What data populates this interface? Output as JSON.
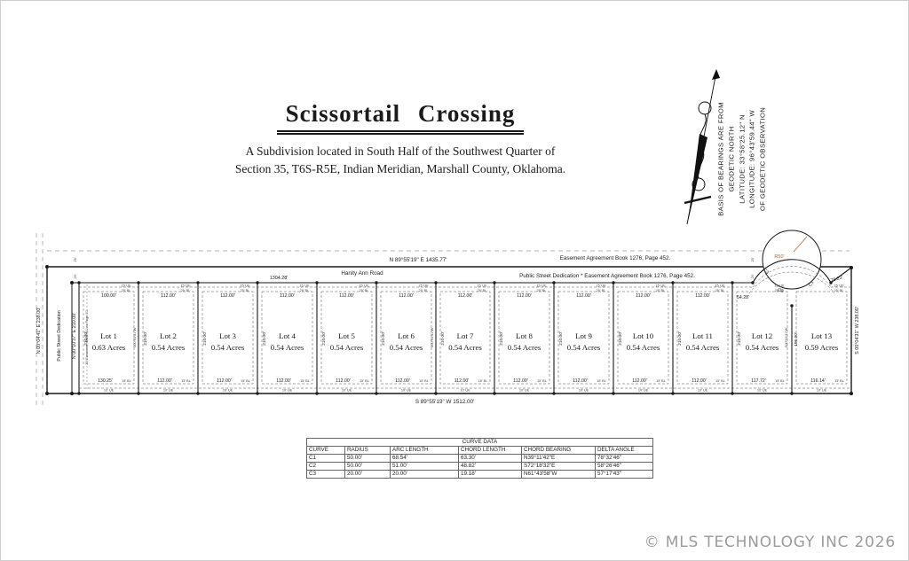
{
  "title": {
    "main": "Scissortail  Crossing",
    "subtitle1": "A Subdivision located in South Half of the Southwest Quarter of",
    "subtitle2": "Section 35, T6S-R5E, Indian Meridian, Marshall County, Oklahoma."
  },
  "north_arrow": {
    "l1": "BASIS OF BEARINGS ARE FROM",
    "l2": "GEODETIC NORTH",
    "l3": "LATITUDE: 33°58'25.12\" N",
    "l4": "LONGITUDE: 96°43'59.44\" W",
    "l5": "OF GEODETIC OBSERVATION"
  },
  "plat": {
    "north_bearing": "N 89°55'19\" E   1435.77'",
    "easement_note_top": "Easement Agreement Book 1276, Page 452.",
    "road_name": "Hanity Ann Road",
    "road_length": "1304.28'",
    "dedication_note": "Public Street Dedication   * Easement Agreement Book 1276, Page 452.",
    "south_bearing": "S 89°55'19\" W   1512.00'",
    "west_outer_bearing": "N 00°04'41\" E   238.00'",
    "west_dedication": "Public Street Dedication",
    "west_inner_bearing": "N 00°10'37\" E   210.00'",
    "west_easement": "30' Easement, Book 911 as Page 70",
    "east_bearing": "S 00°04'31\" W   238.00'",
    "mid_bearing": "S00°04'31\"W",
    "mid_length": "196.00'",
    "radius_label": "R50'",
    "accent_color": "#b4622f",
    "curve_labels": {
      "c1": "C1",
      "c2": "C2",
      "c3": "C3"
    },
    "offsets": {
      "row_offset": "25'",
      "top_ue": "15' UE",
      "top_bl": "25' BL",
      "bottom_bl": "15' BL",
      "bottom_ue": "10' UE"
    },
    "lots": [
      {
        "name": "Lot 1",
        "acres": "0.63 Acres",
        "top": "100.00'",
        "bottom": "130.25'",
        "side": "210.00'"
      },
      {
        "name": "Lot 2",
        "acres": "0.54 Acres",
        "top": "112.00'",
        "bottom": "112.00'",
        "side": "210.00'"
      },
      {
        "name": "Lot 3",
        "acres": "0.54 Acres",
        "top": "112.00'",
        "bottom": "112.00'",
        "side": "210.00'"
      },
      {
        "name": "Lot 4",
        "acres": "0.54 Acres",
        "top": "112.00'",
        "bottom": "112.00'",
        "side": "210.00'"
      },
      {
        "name": "Lot 5",
        "acres": "0.54 Acres",
        "top": "112.00'",
        "bottom": "112.00'",
        "side": "210.00'"
      },
      {
        "name": "Lot 6",
        "acres": "0.54 Acres",
        "top": "112.00'",
        "bottom": "112.00'",
        "side": "210.00'"
      },
      {
        "name": "Lot 7",
        "acres": "0.54 Acres",
        "top": "112.00'",
        "bottom": "112.00'",
        "side": "210.00'"
      },
      {
        "name": "Lot 8",
        "acres": "0.54 Acres",
        "top": "112.00'",
        "bottom": "112.00'",
        "side": "210.00'"
      },
      {
        "name": "Lot 9",
        "acres": "0.54 Acres",
        "top": "112.00'",
        "bottom": "112.00'",
        "side": "210.00'"
      },
      {
        "name": "Lot 10",
        "acres": "0.54 Acres",
        "top": "112.00'",
        "bottom": "112.00'",
        "side": "210.00'"
      },
      {
        "name": "Lot 11",
        "acres": "0.54 Acres",
        "top": "112.00'",
        "bottom": "112.00'",
        "side": "210.00'"
      },
      {
        "name": "Lot 12",
        "acres": "0.54 Acres",
        "top": "54.28'",
        "bottom": "117.72'",
        "side": "210.00'"
      },
      {
        "name": "Lot 13",
        "acres": "0.59 Acres",
        "top": "76.23'",
        "bottom": "116.14'",
        "side": "196.00'"
      }
    ]
  },
  "curve_table": {
    "title": "CURVE DATA",
    "headers": [
      "CURVE",
      "RADIUS",
      "ARC LENGTH",
      "CHORD LENGTH",
      "CHORD BEARING",
      "DELTA ANGLE"
    ],
    "rows": [
      [
        "C1",
        "50.00'",
        "68.54'",
        "63.30'",
        "N39°11'42\"E",
        "78°32'46\""
      ],
      [
        "C2",
        "50.00'",
        "51.00'",
        "48.82'",
        "S72°18'32\"E",
        "58°26'46\""
      ],
      [
        "C3",
        "20.00'",
        "20.00'",
        "19.18'",
        "N61°43'58\"W",
        "57°17'43\""
      ]
    ]
  },
  "footer": {
    "copyright": "© MLS TECHNOLOGY INC 2026"
  }
}
